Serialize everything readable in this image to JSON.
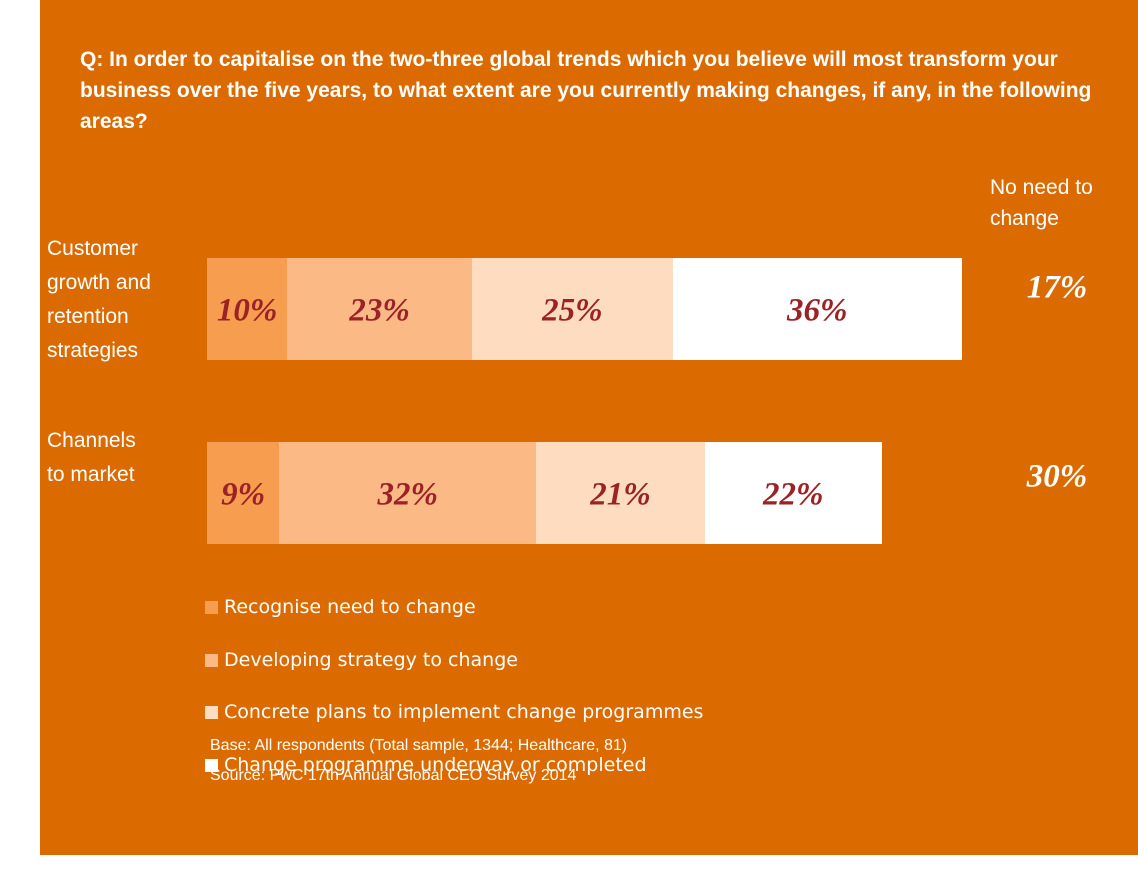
{
  "chart_data": {
    "type": "bar",
    "orientation": "horizontal",
    "stacked": true,
    "title": "Q: In order to capitalise on the two-three global trends which you believe will most transform your business over the five years, to what extent are you currently making changes, if any, in the following areas?",
    "categories": [
      "Customer growth and retention strategies",
      "Channels to market"
    ],
    "series": [
      {
        "name": "Recognise need to change",
        "color": "#f79d4f",
        "values": [
          10,
          9
        ],
        "value_labels": [
          "10%",
          "9%"
        ]
      },
      {
        "name": "Developing strategy to change",
        "color": "#fbb985",
        "values": [
          23,
          32
        ],
        "value_labels": [
          "23%",
          "32%"
        ]
      },
      {
        "name": "Concrete plans to implement change programmes",
        "color": "#fddcc0",
        "values": [
          25,
          21
        ],
        "value_labels": [
          "25%",
          "21%"
        ]
      },
      {
        "name": "Change programme underway or completed",
        "color": "#ffffff",
        "values": [
          36,
          22
        ],
        "value_labels": [
          "36%",
          "22%"
        ]
      }
    ],
    "extra_column": {
      "label": "No need to change",
      "values": [
        17,
        30
      ],
      "value_labels": [
        "17%",
        "30%"
      ]
    },
    "notes": [
      "Base: All respondents (Total sample, 1344; Healthcare, 81)",
      "Source: PwC 17th Annual Global CEO Survey 2014"
    ]
  }
}
